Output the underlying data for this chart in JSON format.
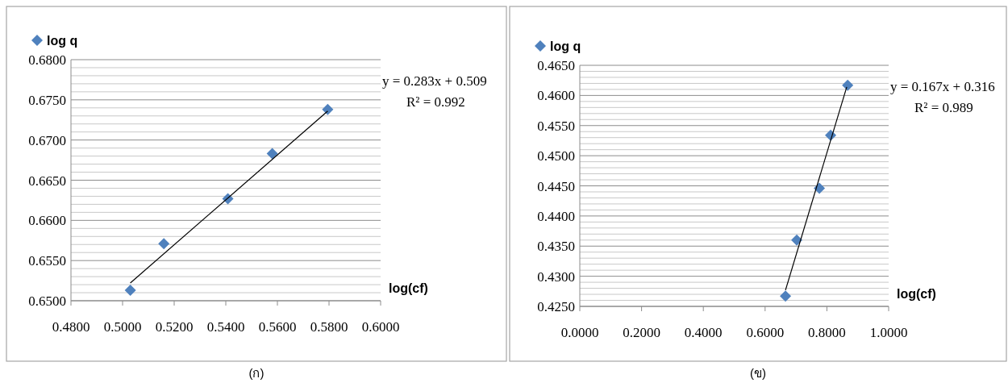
{
  "chart_data": [
    {
      "type": "scatter",
      "xlabel": "log(cf)",
      "legend": "top left",
      "grid": "y",
      "xlim": [
        0.48,
        0.6
      ],
      "ylim": [
        0.65,
        0.68
      ],
      "xticks": [
        {
          "value": 0.48,
          "label": "0.4800"
        },
        {
          "value": 0.5,
          "label": "0.5000"
        },
        {
          "value": 0.52,
          "label": "0.5200"
        },
        {
          "value": 0.54,
          "label": "0.5400"
        },
        {
          "value": 0.56,
          "label": "0.5600"
        },
        {
          "value": 0.58,
          "label": "0.5800"
        },
        {
          "value": 0.6,
          "label": "0.6000"
        }
      ],
      "yticks": [
        {
          "value": 0.65,
          "label": "0.6500"
        },
        {
          "value": 0.651,
          "label": null
        },
        {
          "value": 0.652,
          "label": null
        },
        {
          "value": 0.653,
          "label": null
        },
        {
          "value": 0.654,
          "label": null
        },
        {
          "value": 0.655,
          "label": "0.6550"
        },
        {
          "value": 0.656,
          "label": null
        },
        {
          "value": 0.657,
          "label": null
        },
        {
          "value": 0.658,
          "label": null
        },
        {
          "value": 0.659,
          "label": null
        },
        {
          "value": 0.66,
          "label": "0.6600"
        },
        {
          "value": 0.661,
          "label": null
        },
        {
          "value": 0.662,
          "label": null
        },
        {
          "value": 0.663,
          "label": null
        },
        {
          "value": 0.664,
          "label": null
        },
        {
          "value": 0.665,
          "label": "0.6650"
        },
        {
          "value": 0.666,
          "label": null
        },
        {
          "value": 0.667,
          "label": null
        },
        {
          "value": 0.668,
          "label": null
        },
        {
          "value": 0.669,
          "label": null
        },
        {
          "value": 0.67,
          "label": "0.6700"
        },
        {
          "value": 0.671,
          "label": null
        },
        {
          "value": 0.672,
          "label": null
        },
        {
          "value": 0.673,
          "label": null
        },
        {
          "value": 0.674,
          "label": null
        },
        {
          "value": 0.675,
          "label": "0.6750"
        },
        {
          "value": 0.676,
          "label": null
        },
        {
          "value": 0.677,
          "label": null
        },
        {
          "value": 0.678,
          "label": null
        },
        {
          "value": 0.679,
          "label": null
        },
        {
          "value": 0.68,
          "label": "0.6800"
        }
      ],
      "series": [
        {
          "name": "log q",
          "color": "#4f81bd",
          "marker": "diamond",
          "x": [
            0.503,
            0.516,
            0.5408,
            0.558,
            0.5795
          ],
          "values": [
            0.6513,
            0.6571,
            0.6627,
            0.6683,
            0.6738
          ]
        },
        {
          "type": "line",
          "marker": "none",
          "color": "#000000",
          "x": [
            0.503,
            0.5795
          ],
          "values": [
            0.6522,
            0.6736
          ]
        }
      ],
      "annotations": [
        "y = 0.283x  + 0.509",
        "R² = 0.992",
        "(ก)"
      ]
    },
    {
      "type": "scatter",
      "xlabel": "log(cf)",
      "legend": "top left",
      "grid": "y",
      "xlim": [
        0,
        1
      ],
      "ylim": [
        0.425,
        0.465
      ],
      "xticks": [
        {
          "value": 0,
          "label": "0.0000"
        },
        {
          "value": 0.2,
          "label": "0.2000"
        },
        {
          "value": 0.4,
          "label": "0.4000"
        },
        {
          "value": 0.6,
          "label": "0.6000"
        },
        {
          "value": 0.8,
          "label": "0.8000"
        },
        {
          "value": 1,
          "label": "1.0000"
        }
      ],
      "yticks": [
        {
          "value": 0.425,
          "label": "0.4250"
        },
        {
          "value": 0.426,
          "label": null
        },
        {
          "value": 0.427,
          "label": null
        },
        {
          "value": 0.428,
          "label": null
        },
        {
          "value": 0.429,
          "label": null
        },
        {
          "value": 0.43,
          "label": "0.4300"
        },
        {
          "value": 0.431,
          "label": null
        },
        {
          "value": 0.432,
          "label": null
        },
        {
          "value": 0.433,
          "label": null
        },
        {
          "value": 0.434,
          "label": null
        },
        {
          "value": 0.435,
          "label": "0.4350"
        },
        {
          "value": 0.436,
          "label": null
        },
        {
          "value": 0.437,
          "label": null
        },
        {
          "value": 0.438,
          "label": null
        },
        {
          "value": 0.439,
          "label": null
        },
        {
          "value": 0.44,
          "label": "0.4400"
        },
        {
          "value": 0.441,
          "label": null
        },
        {
          "value": 0.442,
          "label": null
        },
        {
          "value": 0.443,
          "label": null
        },
        {
          "value": 0.444,
          "label": null
        },
        {
          "value": 0.445,
          "label": "0.4450"
        },
        {
          "value": 0.446,
          "label": null
        },
        {
          "value": 0.447,
          "label": null
        },
        {
          "value": 0.448,
          "label": null
        },
        {
          "value": 0.449,
          "label": null
        },
        {
          "value": 0.45,
          "label": "0.4500"
        },
        {
          "value": 0.451,
          "label": null
        },
        {
          "value": 0.452,
          "label": null
        },
        {
          "value": 0.453,
          "label": null
        },
        {
          "value": 0.454,
          "label": null
        },
        {
          "value": 0.455,
          "label": "0.4550"
        },
        {
          "value": 0.456,
          "label": null
        },
        {
          "value": 0.457,
          "label": null
        },
        {
          "value": 0.458,
          "label": null
        },
        {
          "value": 0.459,
          "label": null
        },
        {
          "value": 0.46,
          "label": "0.4600"
        },
        {
          "value": 0.461,
          "label": null
        },
        {
          "value": 0.462,
          "label": null
        },
        {
          "value": 0.463,
          "label": null
        },
        {
          "value": 0.464,
          "label": null
        },
        {
          "value": 0.465,
          "label": "0.4650"
        }
      ],
      "series": [
        {
          "name": "log q",
          "color": "#4f81bd",
          "marker": "diamond",
          "x": [
            0.666,
            0.7025,
            0.7756,
            0.8121,
            0.8674
          ],
          "values": [
            0.4267,
            0.436,
            0.4446,
            0.4534,
            0.4617
          ]
        },
        {
          "type": "line",
          "marker": "none",
          "color": "#000000",
          "x": [
            0.666,
            0.8643
          ],
          "values": [
            0.4277,
            0.4614
          ]
        }
      ],
      "annotations": [
        "y = 0.167x  + 0.316",
        "R² = 0.989",
        "(ข)"
      ]
    }
  ]
}
